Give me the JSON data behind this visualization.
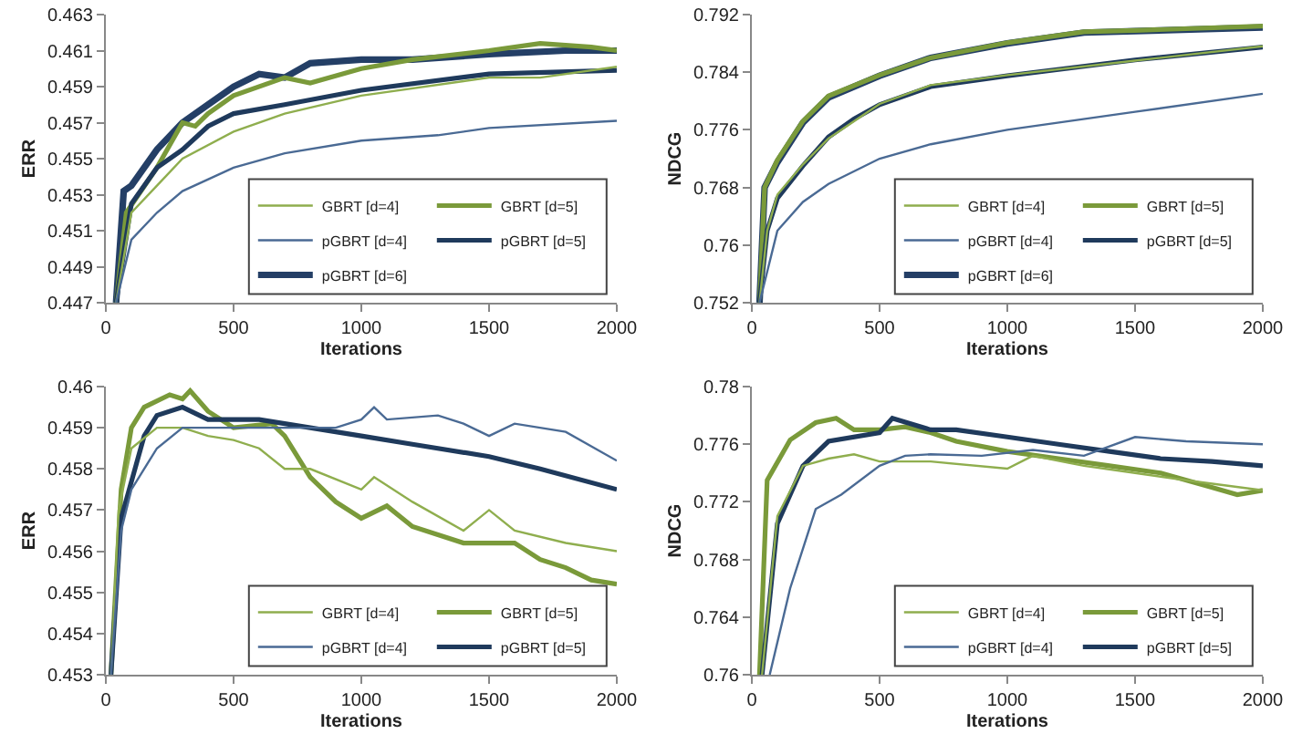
{
  "chart_data": [
    {
      "type": "line",
      "xlabel": "Iterations",
      "ylabel": "ERR",
      "xlim": [
        0,
        2000
      ],
      "xticks": [
        0,
        500,
        1000,
        1500,
        2000
      ],
      "ylim": [
        0.447,
        0.463
      ],
      "yticks": [
        0.447,
        0.449,
        0.451,
        0.453,
        0.455,
        0.457,
        0.459,
        0.461,
        0.463
      ],
      "grid": false,
      "legend": "bottom right",
      "series": [
        {
          "name": "GBRT [d=4]",
          "color": "#8fae4e",
          "x": [
            40,
            100,
            200,
            300,
            500,
            700,
            1000,
            1500,
            1700,
            2000
          ],
          "values": [
            0.447,
            0.452,
            0.4535,
            0.455,
            0.4565,
            0.4575,
            0.4585,
            0.4595,
            0.4595,
            0.4601
          ]
        },
        {
          "name": "GBRT [d=5]",
          "color": "#7a9a3a",
          "x": [
            40,
            80,
            200,
            300,
            350,
            400,
            500,
            700,
            800,
            1000,
            1200,
            1500,
            1700,
            1900,
            2000
          ],
          "values": [
            0.447,
            0.452,
            0.4545,
            0.457,
            0.4568,
            0.4575,
            0.4585,
            0.4595,
            0.4592,
            0.46,
            0.4605,
            0.461,
            0.4614,
            0.4612,
            0.461
          ]
        },
        {
          "name": "pGBRT [d=4]",
          "color": "#4a6a94",
          "x": [
            40,
            100,
            200,
            300,
            500,
            700,
            1000,
            1300,
            1500,
            2000
          ],
          "values": [
            0.447,
            0.4505,
            0.452,
            0.4532,
            0.4545,
            0.4553,
            0.456,
            0.4563,
            0.4567,
            0.4571
          ]
        },
        {
          "name": "pGBRT [d=5]",
          "color": "#1f3a5c",
          "x": [
            40,
            100,
            200,
            300,
            400,
            500,
            700,
            1000,
            1500,
            2000
          ],
          "values": [
            0.447,
            0.4525,
            0.4545,
            0.4555,
            0.4568,
            0.4575,
            0.458,
            0.4588,
            0.4597,
            0.4599
          ]
        },
        {
          "name": "pGBRT [d=6]",
          "color": "#243f66",
          "x": [
            40,
            70,
            100,
            200,
            300,
            400,
            500,
            600,
            700,
            800,
            1000,
            1200,
            1500,
            1800,
            2000
          ],
          "values": [
            0.447,
            0.4532,
            0.4535,
            0.4555,
            0.457,
            0.458,
            0.459,
            0.4597,
            0.4595,
            0.4603,
            0.4605,
            0.4605,
            0.4608,
            0.461,
            0.461
          ]
        }
      ]
    },
    {
      "type": "line",
      "xlabel": "Iterations",
      "ylabel": "NDCG",
      "xlim": [
        0,
        2000
      ],
      "xticks": [
        0,
        500,
        1000,
        1500,
        2000
      ],
      "ylim": [
        0.752,
        0.792
      ],
      "yticks": [
        0.752,
        0.76,
        0.768,
        0.776,
        0.784,
        0.792
      ],
      "grid": false,
      "legend": "bottom right",
      "series": [
        {
          "name": "GBRT [d=4]",
          "color": "#8fae4e",
          "x": [
            30,
            60,
            100,
            200,
            300,
            400,
            500,
            700,
            1000,
            1500,
            2000
          ],
          "values": [
            0.752,
            0.762,
            0.767,
            0.7712,
            0.7748,
            0.7772,
            0.7796,
            0.7822,
            0.7836,
            0.7856,
            0.7876
          ]
        },
        {
          "name": "GBRT [d=5]",
          "color": "#7a9a3a",
          "x": [
            30,
            50,
            100,
            200,
            300,
            500,
            700,
            1000,
            1300,
            1500,
            2000
          ],
          "values": [
            0.752,
            0.768,
            0.7718,
            0.7772,
            0.7807,
            0.7836,
            0.786,
            0.7881,
            0.7896,
            0.7898,
            0.7904
          ]
        },
        {
          "name": "pGBRT [d=4]",
          "color": "#4a6a94",
          "x": [
            30,
            100,
            200,
            300,
            500,
            700,
            1000,
            1500,
            2000
          ],
          "values": [
            0.752,
            0.762,
            0.766,
            0.7685,
            0.772,
            0.774,
            0.776,
            0.7785,
            0.781
          ]
        },
        {
          "name": "pGBRT [d=5]",
          "color": "#1f3a5c",
          "x": [
            30,
            60,
            100,
            200,
            300,
            400,
            500,
            700,
            1000,
            1500,
            2000
          ],
          "values": [
            0.752,
            0.762,
            0.7665,
            0.771,
            0.775,
            0.7775,
            0.7795,
            0.782,
            0.7835,
            0.7857,
            0.7875
          ]
        },
        {
          "name": "pGBRT [d=6]",
          "color": "#243f66",
          "x": [
            30,
            50,
            100,
            200,
            300,
            500,
            700,
            1000,
            1300,
            1500,
            2000
          ],
          "values": [
            0.752,
            0.768,
            0.7715,
            0.777,
            0.7805,
            0.7835,
            0.786,
            0.788,
            0.7895,
            0.7897,
            0.7902
          ]
        }
      ]
    },
    {
      "type": "line",
      "xlabel": "Iterations",
      "ylabel": "ERR",
      "xlim": [
        0,
        2000
      ],
      "xticks": [
        0,
        500,
        1000,
        1500,
        2000
      ],
      "ylim": [
        0.453,
        0.46
      ],
      "yticks": [
        0.453,
        0.454,
        0.455,
        0.456,
        0.457,
        0.458,
        0.459,
        0.46
      ],
      "grid": false,
      "legend": "bottom right",
      "series": [
        {
          "name": "GBRT [d=4]",
          "color": "#8fae4e",
          "x": [
            20,
            50,
            100,
            200,
            300,
            400,
            500,
            600,
            700,
            800,
            1000,
            1050,
            1200,
            1400,
            1500,
            1600,
            1800,
            2000
          ],
          "values": [
            0.453,
            0.457,
            0.4585,
            0.459,
            0.459,
            0.4588,
            0.4587,
            0.4585,
            0.458,
            0.458,
            0.4575,
            0.4578,
            0.4572,
            0.4565,
            0.457,
            0.4565,
            0.4562,
            0.456
          ]
        },
        {
          "name": "GBRT [d=5]",
          "color": "#7a9a3a",
          "x": [
            20,
            60,
            100,
            150,
            250,
            300,
            330,
            400,
            500,
            650,
            700,
            800,
            900,
            1000,
            1100,
            1200,
            1400,
            1600,
            1700,
            1800,
            1900,
            2000
          ],
          "values": [
            0.453,
            0.4575,
            0.459,
            0.4595,
            0.4598,
            0.4597,
            0.4599,
            0.4594,
            0.459,
            0.4591,
            0.4588,
            0.4578,
            0.4572,
            0.4568,
            0.4571,
            0.4566,
            0.4562,
            0.4562,
            0.4558,
            0.4556,
            0.4553,
            0.4552
          ]
        },
        {
          "name": "pGBRT [d=4]",
          "color": "#4a6a94",
          "x": [
            20,
            60,
            100,
            200,
            300,
            500,
            700,
            900,
            1000,
            1050,
            1100,
            1300,
            1400,
            1500,
            1600,
            1800,
            2000
          ],
          "values": [
            0.453,
            0.4565,
            0.4575,
            0.4585,
            0.459,
            0.459,
            0.459,
            0.459,
            0.4592,
            0.4595,
            0.4592,
            0.4593,
            0.4591,
            0.4588,
            0.4591,
            0.4589,
            0.4582
          ]
        },
        {
          "name": "pGBRT [d=5]",
          "color": "#1f3a5c",
          "x": [
            20,
            60,
            150,
            200,
            300,
            400,
            600,
            800,
            1000,
            1200,
            1500,
            1700,
            2000
          ],
          "values": [
            0.453,
            0.4568,
            0.4588,
            0.4593,
            0.4595,
            0.4592,
            0.4592,
            0.459,
            0.4588,
            0.4586,
            0.4583,
            0.458,
            0.4575
          ]
        }
      ]
    },
    {
      "type": "line",
      "xlabel": "Iterations",
      "ylabel": "NDCG",
      "xlim": [
        0,
        2000
      ],
      "xticks": [
        0,
        500,
        1000,
        1500,
        2000
      ],
      "ylim": [
        0.76,
        0.78
      ],
      "yticks": [
        0.76,
        0.764,
        0.768,
        0.772,
        0.776,
        0.78
      ],
      "grid": false,
      "legend": "bottom right",
      "series": [
        {
          "name": "GBRT [d=4]",
          "color": "#8fae4e",
          "x": [
            40,
            100,
            200,
            300,
            400,
            500,
            700,
            1000,
            1100,
            1300,
            1500,
            1700,
            2000
          ],
          "values": [
            0.76,
            0.771,
            0.7745,
            0.775,
            0.7753,
            0.7748,
            0.7748,
            0.7743,
            0.7752,
            0.7745,
            0.774,
            0.7735,
            0.7728
          ]
        },
        {
          "name": "GBRT [d=5]",
          "color": "#7a9a3a",
          "x": [
            30,
            60,
            150,
            250,
            330,
            400,
            500,
            600,
            700,
            800,
            1000,
            1200,
            1400,
            1600,
            1800,
            1900,
            2000
          ],
          "values": [
            0.76,
            0.7735,
            0.7763,
            0.7775,
            0.7778,
            0.777,
            0.777,
            0.7772,
            0.7768,
            0.7762,
            0.7755,
            0.775,
            0.7745,
            0.774,
            0.773,
            0.7725,
            0.7728
          ]
        },
        {
          "name": "pGBRT [d=4]",
          "color": "#4a6a94",
          "x": [
            70,
            150,
            250,
            350,
            500,
            600,
            700,
            900,
            1100,
            1300,
            1500,
            1700,
            2000
          ],
          "values": [
            0.76,
            0.766,
            0.7715,
            0.7725,
            0.7745,
            0.7752,
            0.7753,
            0.7752,
            0.7756,
            0.7752,
            0.7765,
            0.7762,
            0.776
          ]
        },
        {
          "name": "pGBRT [d=5]",
          "color": "#1f3a5c",
          "x": [
            40,
            100,
            200,
            300,
            500,
            550,
            700,
            800,
            1000,
            1200,
            1400,
            1600,
            1800,
            2000
          ],
          "values": [
            0.76,
            0.7705,
            0.7745,
            0.7762,
            0.7768,
            0.7778,
            0.777,
            0.777,
            0.7765,
            0.776,
            0.7755,
            0.775,
            0.7748,
            0.7745
          ]
        }
      ]
    }
  ]
}
